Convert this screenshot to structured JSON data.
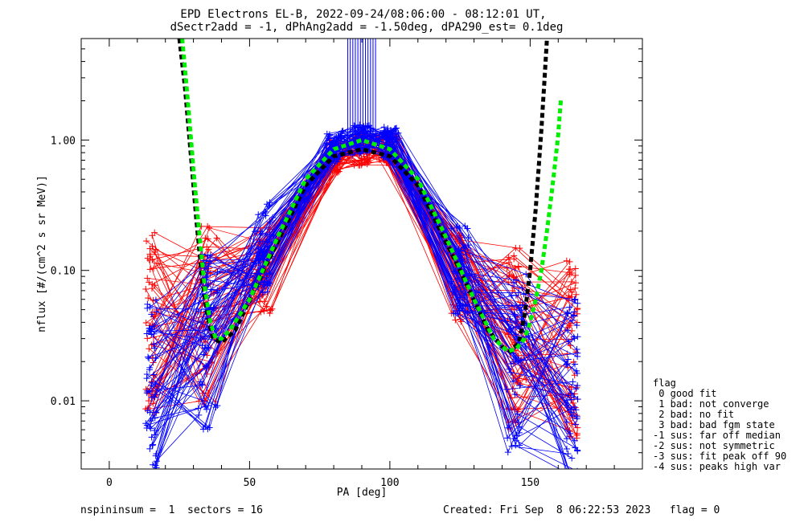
{
  "chart_data": {
    "type": "line",
    "title": "EPD Electrons EL-B, 2022-09-24/08:06:00 - 08:12:01 UT,",
    "subtitle": "dSectr2add = -1, dPhAng2add = -1.50deg, dPA290_est=   0.1deg",
    "xlabel": "PA [deg]",
    "ylabel": "nflux [#/(cm^2 s sr MeV)]",
    "xlim": [
      -10,
      190
    ],
    "ylim": [
      0.003,
      6
    ],
    "yscale": "log",
    "x_ticks": [
      {
        "v": 0,
        "label": "0"
      },
      {
        "v": 50,
        "label": "50"
      },
      {
        "v": 100,
        "label": "100"
      },
      {
        "v": 150,
        "label": "150"
      }
    ],
    "y_ticks": [
      {
        "v": 0.01,
        "label": "0.01"
      },
      {
        "v": 0.1,
        "label": "0.10"
      },
      {
        "v": 1,
        "label": "1.00"
      }
    ],
    "grid": false,
    "series": [
      {
        "color": "#ff0000",
        "style": "thin lines with plus markers (many spins)",
        "x": [
          15,
          35,
          55,
          80,
          90,
          100,
          125,
          145,
          165
        ],
        "y": [
          0.04,
          0.045,
          0.1,
          0.75,
          0.85,
          0.85,
          0.09,
          0.03,
          0.025
        ]
      },
      {
        "color": "#0000ff",
        "style": "thin lines with plus markers (many spins)",
        "x": [
          15,
          35,
          55,
          80,
          90,
          100,
          125,
          145,
          165
        ],
        "y": [
          0.012,
          0.03,
          0.15,
          0.9,
          1.0,
          0.95,
          0.1,
          0.02,
          0.012
        ]
      },
      {
        "color": "#000000",
        "style": "thick dashed fit",
        "x": [
          25,
          27,
          29,
          31,
          33,
          35,
          37,
          40,
          45,
          55,
          70,
          80,
          90,
          100,
          110,
          125,
          135,
          140,
          143,
          146,
          148,
          150,
          152,
          154,
          156
        ],
        "y": [
          6,
          2.5,
          0.8,
          0.25,
          0.09,
          0.045,
          0.03,
          0.028,
          0.035,
          0.1,
          0.45,
          0.75,
          0.85,
          0.75,
          0.45,
          0.1,
          0.035,
          0.026,
          0.024,
          0.028,
          0.045,
          0.1,
          0.3,
          1.2,
          6
        ]
      },
      {
        "color": "#00ee00",
        "style": "thick dashed fit",
        "x": [
          26,
          28,
          30,
          32,
          34,
          36,
          38,
          40,
          43,
          50,
          60,
          70,
          80,
          90,
          100,
          110,
          120,
          130,
          137,
          142,
          145,
          148,
          150,
          152,
          154,
          156,
          158,
          160,
          161
        ],
        "y": [
          6,
          2.0,
          0.6,
          0.2,
          0.075,
          0.04,
          0.03,
          0.03,
          0.035,
          0.06,
          0.18,
          0.5,
          0.85,
          1.0,
          0.85,
          0.5,
          0.18,
          0.06,
          0.03,
          0.024,
          0.025,
          0.03,
          0.04,
          0.06,
          0.1,
          0.2,
          0.45,
          1.1,
          2.1
        ]
      }
    ]
  },
  "legend": {
    "title": "flag",
    "items": [
      " 0 good fit",
      " 1 bad: not converge",
      " 2 bad: no fit",
      " 3 bad: bad fgm state",
      "-1 sus: far off median",
      "-2 sus: not symmetric",
      "-3 sus: fit peak off 90",
      "-4 sus: peaks high var"
    ]
  },
  "footer": {
    "left": "nspininsum =  1  sectors = 16",
    "right": "Created: Fri Sep  8 06:22:53 2023   flag = 0"
  },
  "colors": {
    "red": "#ff0000",
    "blue": "#0000ff",
    "black": "#000000",
    "green": "#00ee00"
  }
}
